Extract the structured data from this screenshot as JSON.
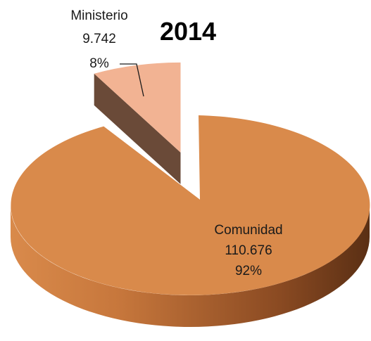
{
  "chart_data": {
    "type": "pie",
    "title": "2014",
    "slices": [
      {
        "name": "Comunidad",
        "value": "110.676",
        "percent": "92%",
        "fraction": 0.92
      },
      {
        "name": "Ministerio",
        "value": "9.742",
        "percent": "8%",
        "fraction": 0.08
      }
    ],
    "exploded": "Ministerio",
    "style": "3d",
    "legend": "none",
    "colors": {
      "comunidad_top": "#d98a4b",
      "comunidad_side_light": "#c7773c",
      "comunidad_side_dark": "#5a2f14",
      "ministerio_top": "#f2b393",
      "ministerio_side": "#6a4a38"
    }
  }
}
